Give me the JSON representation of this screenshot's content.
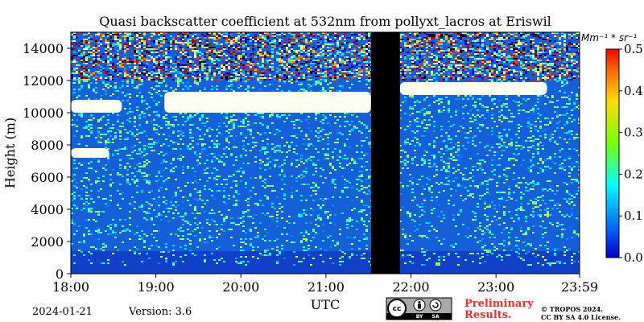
{
  "chart_data": {
    "type": "heatmap",
    "title": "Quasi backscatter coefficient at 532nm from pollyxt_lacros at Eriswil",
    "xlabel": "UTC",
    "ylabel": "Height (m)",
    "x_ticks": [
      "18:00",
      "19:00",
      "20:00",
      "21:00",
      "22:00",
      "23:00",
      "23:59"
    ],
    "x_tick_hours": [
      18,
      19,
      20,
      21,
      22,
      23,
      23.983
    ],
    "xlim": [
      18,
      23.983
    ],
    "y_ticks": [
      0,
      2000,
      4000,
      6000,
      8000,
      10000,
      12000,
      14000
    ],
    "ylim": [
      0,
      15000
    ],
    "colorbar": {
      "unit": "Mm⁻¹ * sr⁻¹",
      "min": 0.0,
      "max": 0.5,
      "ticks": [
        0.0,
        0.1,
        0.2,
        0.3,
        0.4,
        0.5
      ],
      "colormap": "jet",
      "low_color": "#0000c8",
      "high_color": "#ff0000"
    },
    "no_data_gap": {
      "from_hour": 21.53,
      "to_hour": 21.87,
      "color": "#000000"
    },
    "cloud_layers": [
      {
        "from_hour": 18.0,
        "to_hour": 18.6,
        "base_m": 10000,
        "top_m": 10800
      },
      {
        "from_hour": 18.0,
        "to_hour": 18.45,
        "base_m": 7200,
        "top_m": 7800
      },
      {
        "from_hour": 19.1,
        "to_hour": 21.53,
        "base_m": 10000,
        "top_m": 11300
      },
      {
        "from_hour": 21.87,
        "to_hour": 23.6,
        "base_m": 11100,
        "top_m": 11900
      }
    ],
    "description_values": {
      "boundary_layer_top_m": 1400,
      "noise_dominant_above_m": 12000
    }
  },
  "footer": {
    "date": "2024-01-21",
    "version": "Version: 3.6",
    "preliminary_line1": "Preliminary",
    "preliminary_line2": "Results.",
    "copyright_line1": "© TROPOS 2024.",
    "copyright_line2": "CC BY SA 4.0 License.",
    "license_badge_label_by": "BY",
    "license_badge_label_sa": "SA",
    "license_badge_cc": "cc"
  }
}
